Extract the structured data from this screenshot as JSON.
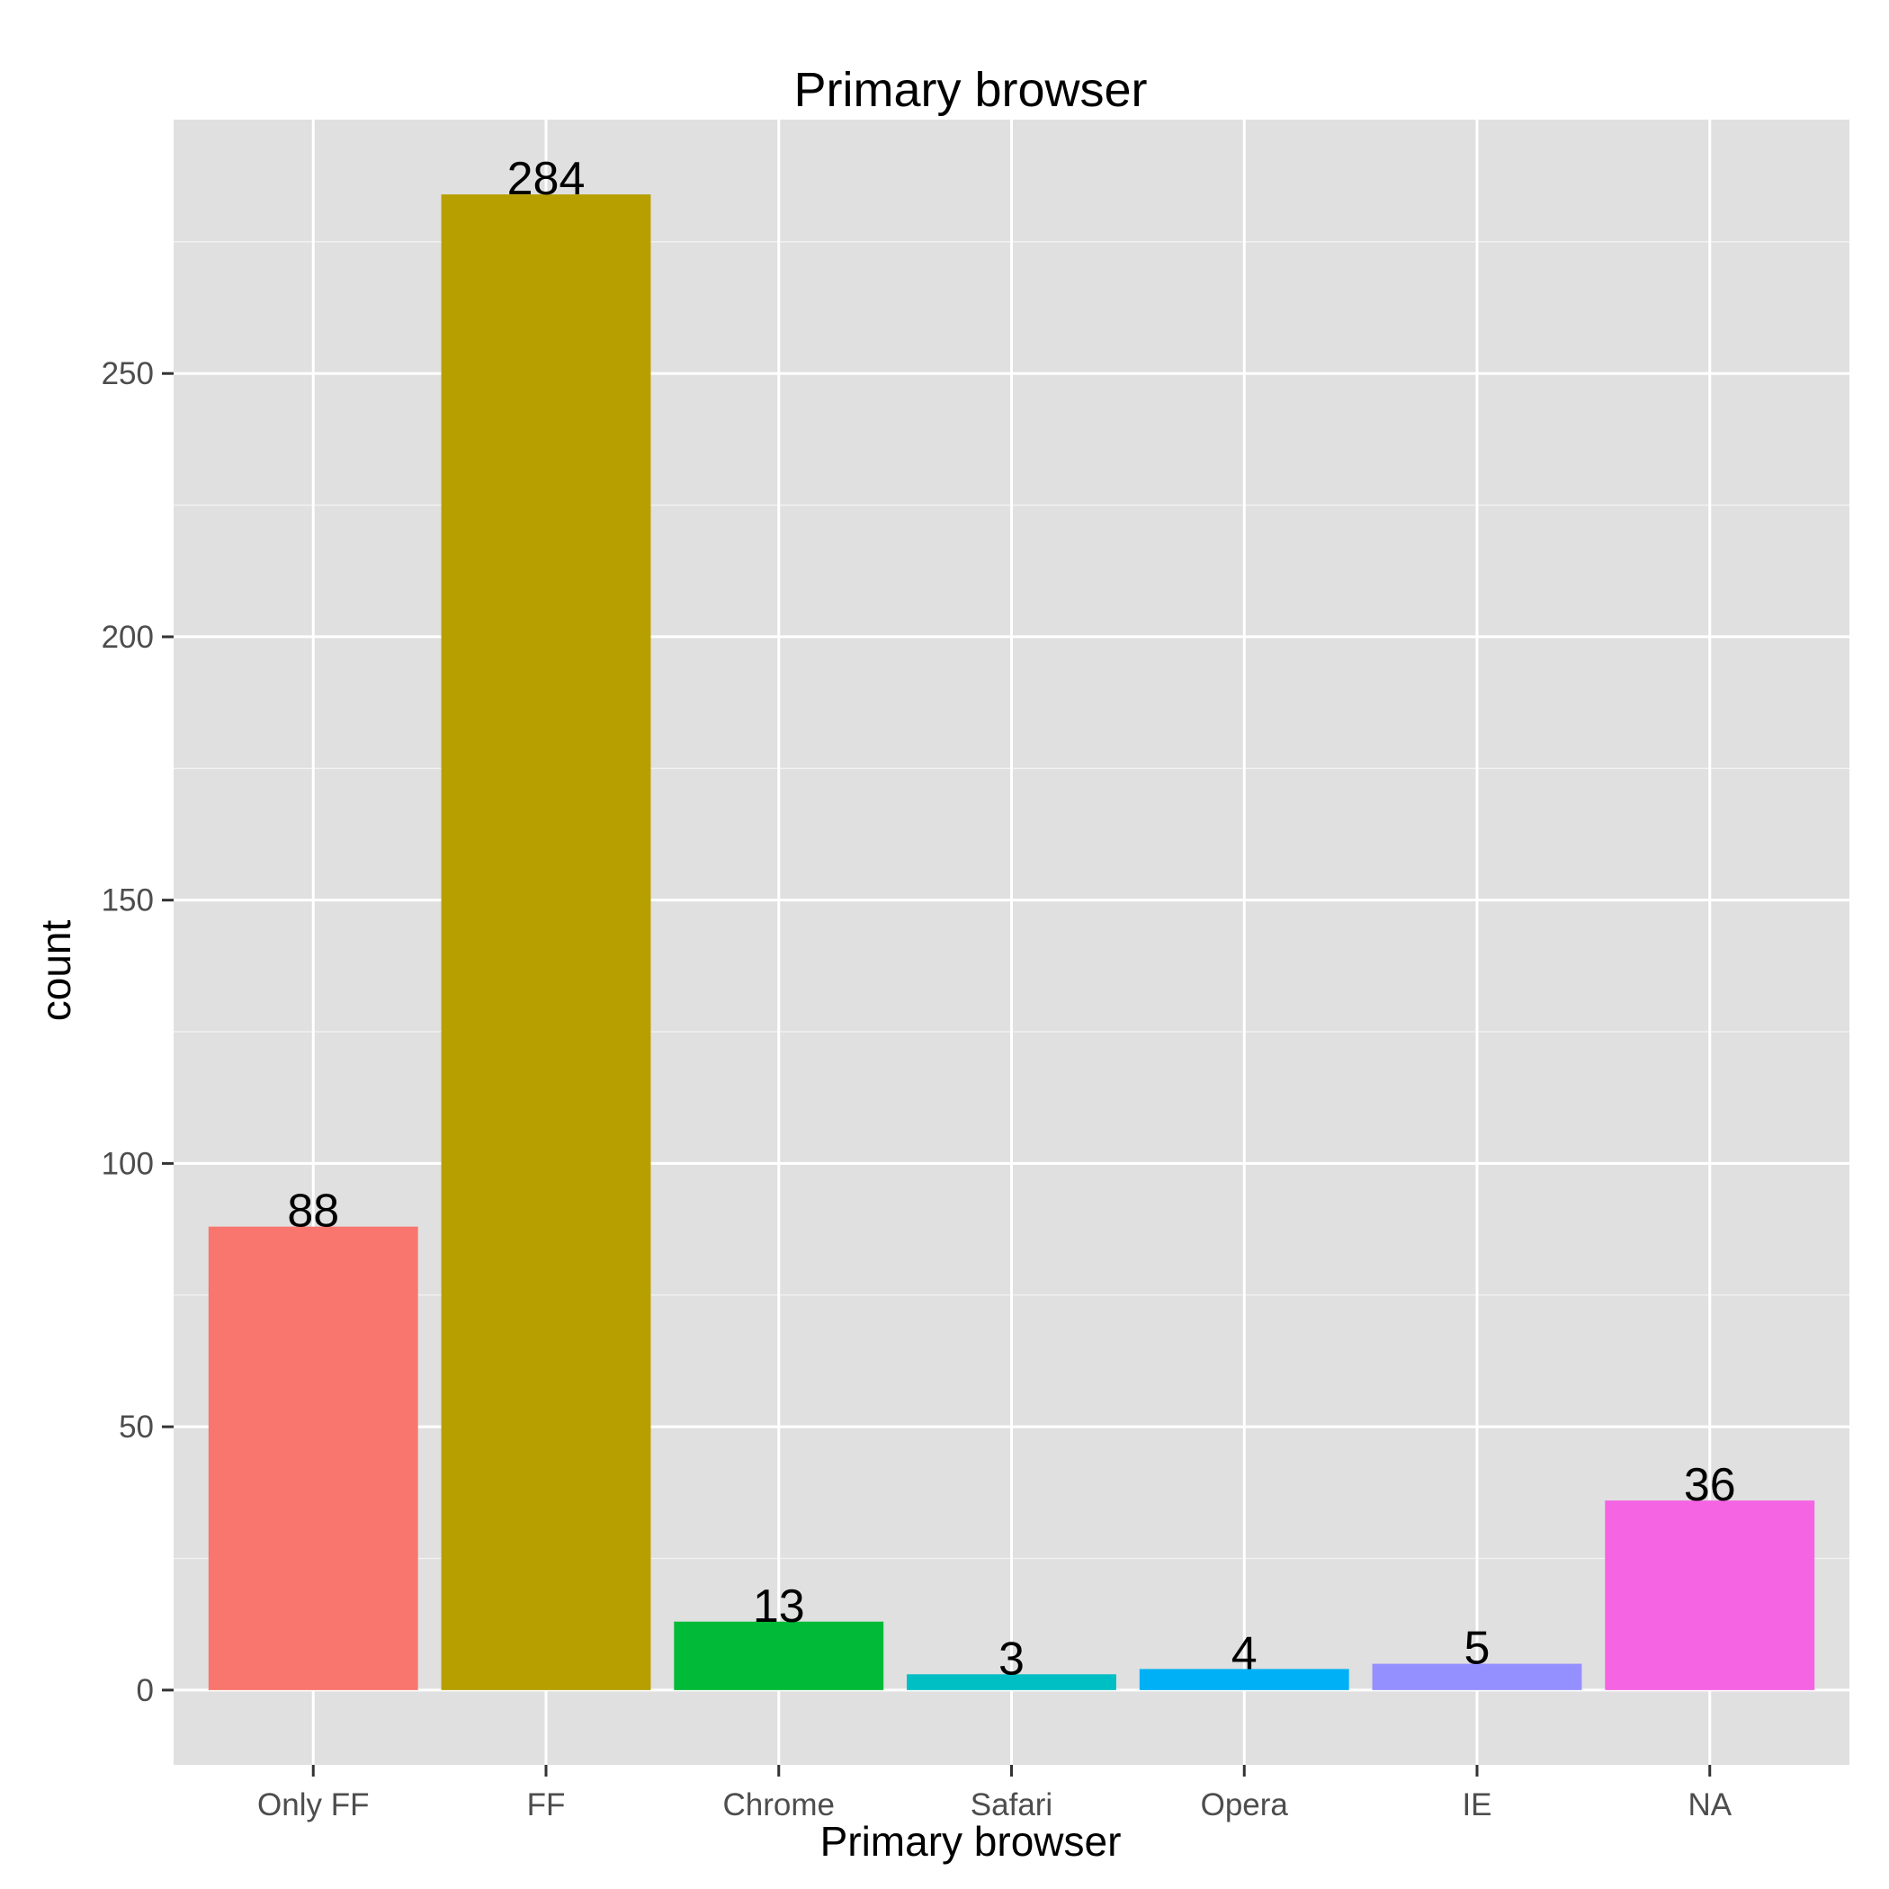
{
  "chart_data": {
    "type": "bar",
    "title": "Primary browser",
    "xlabel": "Primary browser",
    "ylabel": "count",
    "categories": [
      "Only FF",
      "FF",
      "Chrome",
      "Safari",
      "Opera",
      "IE",
      "NA"
    ],
    "values": [
      88,
      284,
      13,
      3,
      4,
      5,
      36
    ],
    "data_labels": [
      "88",
      "284",
      "13",
      "3",
      "4",
      "5",
      "36"
    ],
    "colors": [
      "#F8766D",
      "#B79F00",
      "#00BA38",
      "#00BFC4",
      "#00B0F6",
      "#9590FF",
      "#F564E3"
    ],
    "yticks": [
      0,
      50,
      100,
      150,
      200,
      250
    ],
    "ytick_labels": [
      "0",
      "50",
      "100",
      "150",
      "200",
      "250"
    ],
    "ylim": [
      -14.2,
      298.2
    ],
    "grid": true,
    "legend": "none",
    "panel_background": "#E0E0E0",
    "grid_color": "#FFFFFF"
  }
}
